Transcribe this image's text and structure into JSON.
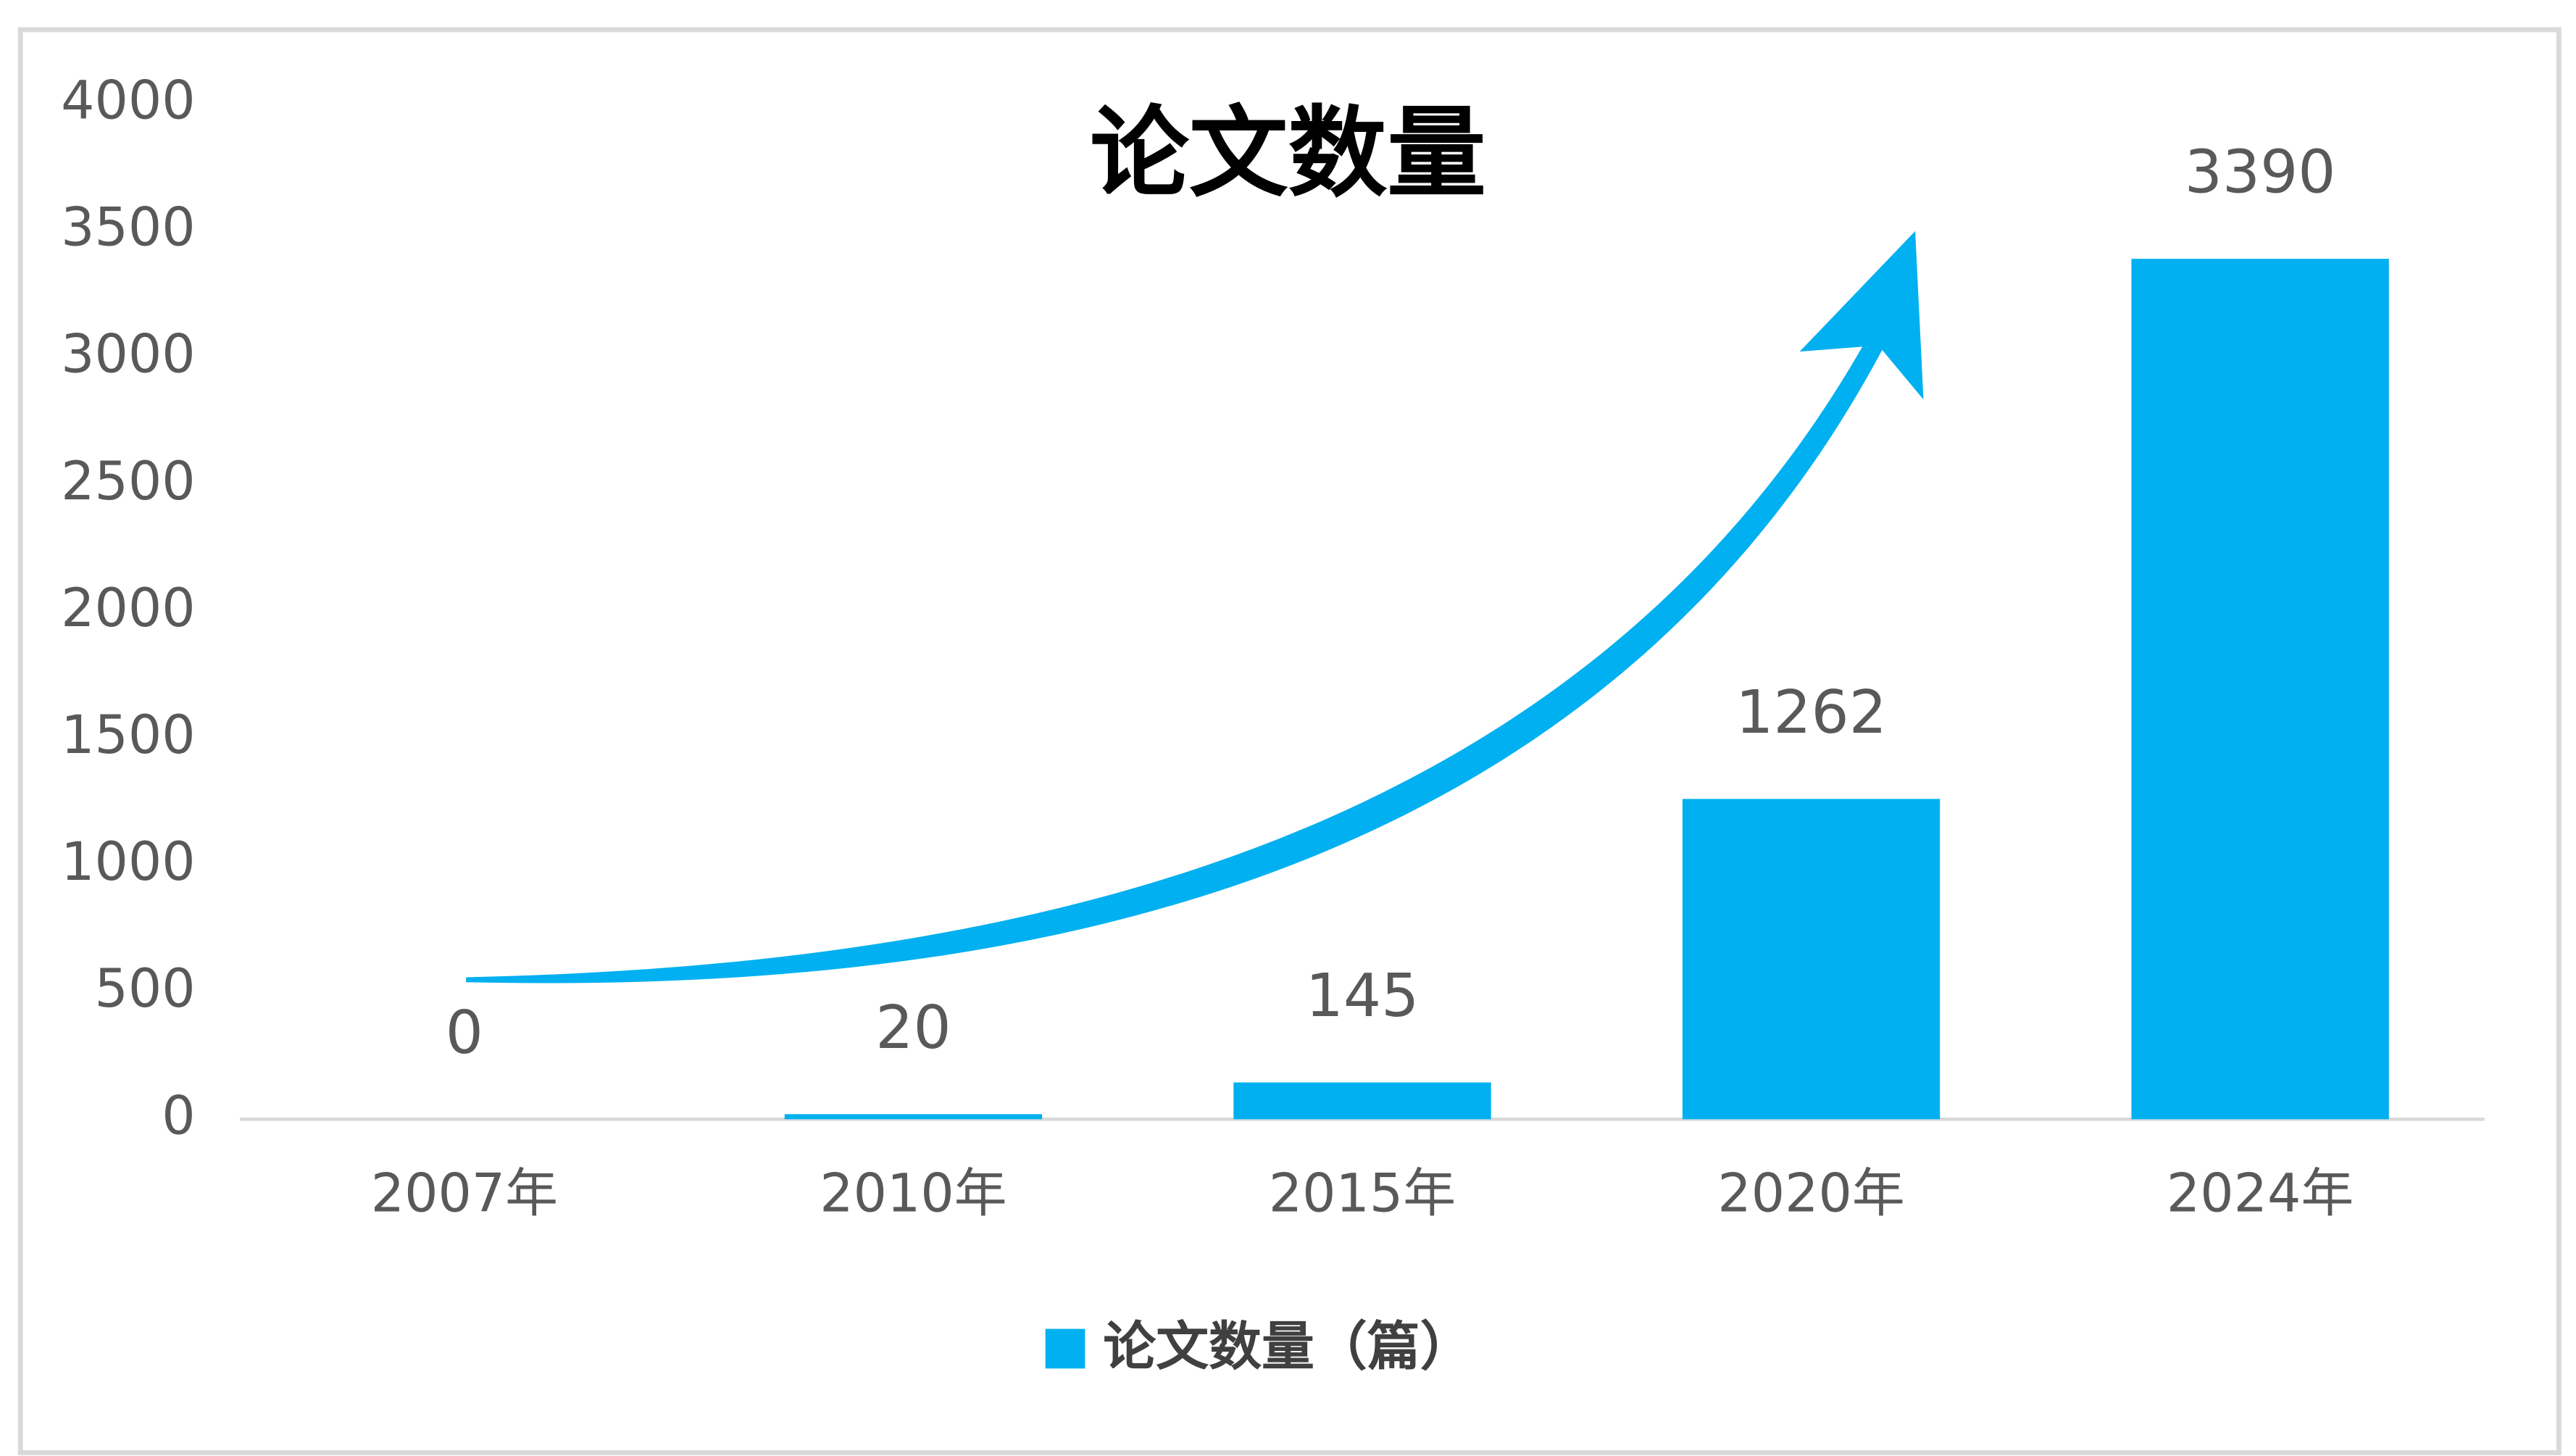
{
  "chart_data": {
    "type": "bar",
    "title": "论文数量",
    "categories": [
      "2007年",
      "2010年",
      "2015年",
      "2020年",
      "2024年"
    ],
    "series": [
      {
        "name": "论文数量（篇）",
        "color": "#00b0f0",
        "values": [
          0,
          20,
          145,
          1262,
          3390
        ]
      }
    ],
    "ylim": [
      0,
      4000
    ],
    "yticks": [
      0,
      500,
      1000,
      1500,
      2000,
      2500,
      3000,
      3500,
      4000
    ],
    "grid": false
  }
}
